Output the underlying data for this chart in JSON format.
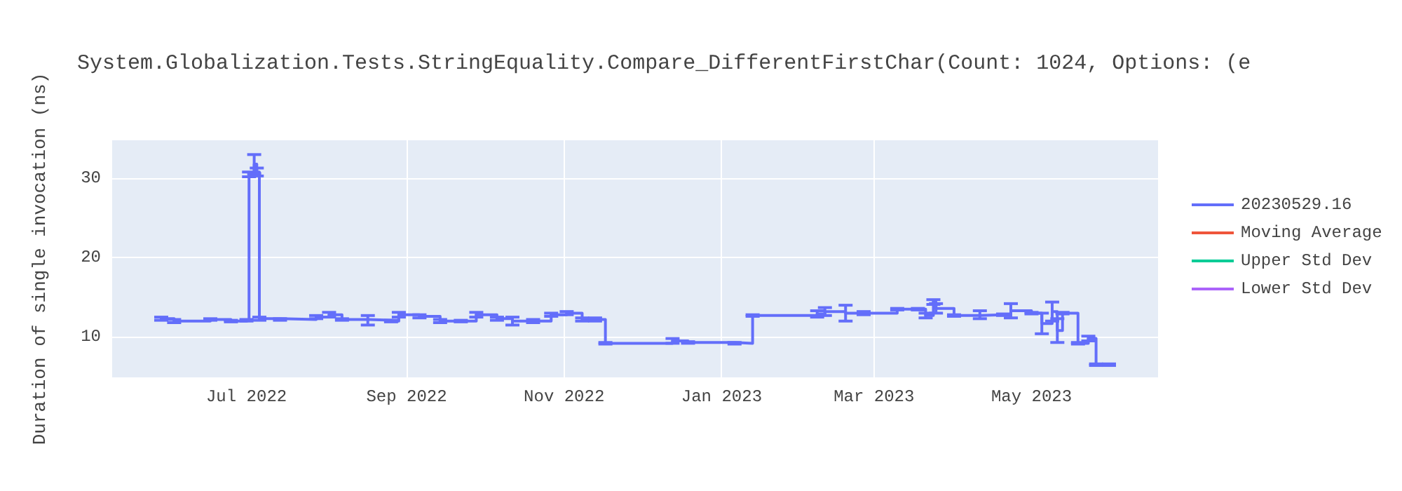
{
  "chart_data": {
    "type": "step",
    "title": "System.Globalization.Tests.StringEquality.Compare_DifferentFirstChar(Count: 1024, Options: (e",
    "ylabel": "Duration of single invocation (ns)",
    "x": [
      "2022-05-29",
      "2022-06-03",
      "2022-06-17",
      "2022-06-25",
      "2022-07-01",
      "2022-07-02",
      "2022-07-04",
      "2022-07-05",
      "2022-07-06",
      "2022-07-14",
      "2022-07-28",
      "2022-08-02",
      "2022-08-07",
      "2022-08-17",
      "2022-08-26",
      "2022-08-29",
      "2022-09-06",
      "2022-09-14",
      "2022-09-22",
      "2022-09-28",
      "2022-10-06",
      "2022-10-12",
      "2022-10-20",
      "2022-10-27",
      "2022-11-02",
      "2022-11-08",
      "2022-11-13",
      "2022-11-17",
      "2022-12-13",
      "2022-12-19",
      "2023-01-06",
      "2023-01-13",
      "2023-02-07",
      "2023-02-10",
      "2023-02-18",
      "2023-02-25",
      "2023-03-10",
      "2023-03-18",
      "2023-03-21",
      "2023-03-24",
      "2023-03-25",
      "2023-04-01",
      "2023-04-11",
      "2023-04-20",
      "2023-04-23",
      "2023-05-01",
      "2023-05-05",
      "2023-05-09",
      "2023-05-11",
      "2023-05-13",
      "2023-05-19",
      "2023-05-23",
      "2023-05-26",
      "2023-05-31"
    ],
    "series": [
      {
        "name": "20230529.16",
        "color": "#636efa",
        "values": [
          12.3,
          12.0,
          12.2,
          12.0,
          12.1,
          30.5,
          31.8,
          30.8,
          12.3,
          12.2,
          12.5,
          12.8,
          12.2,
          12.1,
          12.0,
          12.8,
          12.6,
          12.0,
          12.0,
          12.8,
          12.3,
          12.0,
          12.0,
          12.8,
          13.0,
          12.2,
          12.2,
          9.2,
          9.5,
          9.3,
          9.2,
          12.7,
          12.9,
          13.2,
          13.0,
          13.0,
          13.5,
          13.5,
          12.7,
          14.4,
          13.6,
          12.7,
          12.8,
          12.8,
          13.3,
          13.0,
          11.7,
          13.2,
          10.8,
          13.0,
          9.2,
          9.8,
          6.5,
          6.5
        ],
        "errors": [
          0.2,
          0.2,
          0.1,
          0.1,
          0.1,
          0.3,
          1.2,
          0.5,
          0.2,
          0.1,
          0.2,
          0.3,
          0.1,
          0.6,
          0.1,
          0.3,
          0.2,
          0.2,
          0.1,
          0.3,
          0.2,
          0.5,
          0.2,
          0.2,
          0.2,
          0.2,
          0.2,
          0.1,
          0.3,
          0.1,
          0.1,
          0.1,
          0.4,
          0.5,
          1.0,
          0.2,
          0.1,
          0.1,
          0.3,
          0.3,
          0.6,
          0.1,
          0.5,
          0.1,
          0.9,
          0.1,
          1.3,
          1.2,
          1.5,
          0.1,
          0.1,
          0.3,
          0.1,
          0.1
        ]
      },
      {
        "name": "Moving Average",
        "color": "#ef553b",
        "values": [
          null,
          null,
          null,
          null,
          null,
          null,
          null,
          null,
          null,
          null,
          null,
          null,
          null,
          null,
          null,
          null,
          null,
          null,
          null,
          null,
          null,
          null,
          null,
          null,
          null,
          null,
          null,
          null,
          null,
          null,
          null,
          null,
          null,
          null,
          null,
          null,
          null,
          null,
          null,
          null,
          null,
          null,
          null,
          null,
          null,
          null,
          null,
          null,
          null,
          null,
          null,
          null,
          null,
          null
        ]
      },
      {
        "name": "Upper Std Dev",
        "color": "#00cc96",
        "values": [
          null,
          null,
          null,
          null,
          null,
          null,
          null,
          null,
          null,
          null,
          null,
          null,
          null,
          null,
          null,
          null,
          null,
          null,
          null,
          null,
          null,
          null,
          null,
          null,
          null,
          null,
          null,
          null,
          null,
          null,
          null,
          null,
          null,
          null,
          null,
          null,
          null,
          null,
          null,
          null,
          null,
          null,
          null,
          null,
          null,
          null,
          null,
          null,
          null,
          null,
          null,
          null,
          null,
          null
        ]
      },
      {
        "name": "Lower Std Dev",
        "color": "#ab63fa",
        "values": [
          null,
          null,
          null,
          null,
          null,
          null,
          null,
          null,
          null,
          null,
          null,
          null,
          null,
          null,
          null,
          null,
          null,
          null,
          null,
          null,
          null,
          null,
          null,
          null,
          null,
          null,
          null,
          null,
          null,
          null,
          null,
          null,
          null,
          null,
          null,
          null,
          null,
          null,
          null,
          null,
          null,
          null,
          null,
          null,
          null,
          null,
          null,
          null,
          null,
          null,
          null,
          null,
          null,
          null
        ]
      }
    ],
    "xlim": [
      "2022-05-10",
      "2023-06-19"
    ],
    "xticks": [
      {
        "value": "2022-07-01",
        "label": "Jul 2022"
      },
      {
        "value": "2022-09-01",
        "label": "Sep 2022"
      },
      {
        "value": "2022-11-01",
        "label": "Nov 2022"
      },
      {
        "value": "2023-01-01",
        "label": "Jan 2023"
      },
      {
        "value": "2023-03-01",
        "label": "Mar 2023"
      },
      {
        "value": "2023-05-01",
        "label": "May 2023"
      }
    ],
    "ylim": [
      4.9,
      34.8
    ],
    "yticks": [
      10,
      20,
      30
    ],
    "grid": true,
    "legend": "top right",
    "marker": "none",
    "line_style": "solid"
  }
}
